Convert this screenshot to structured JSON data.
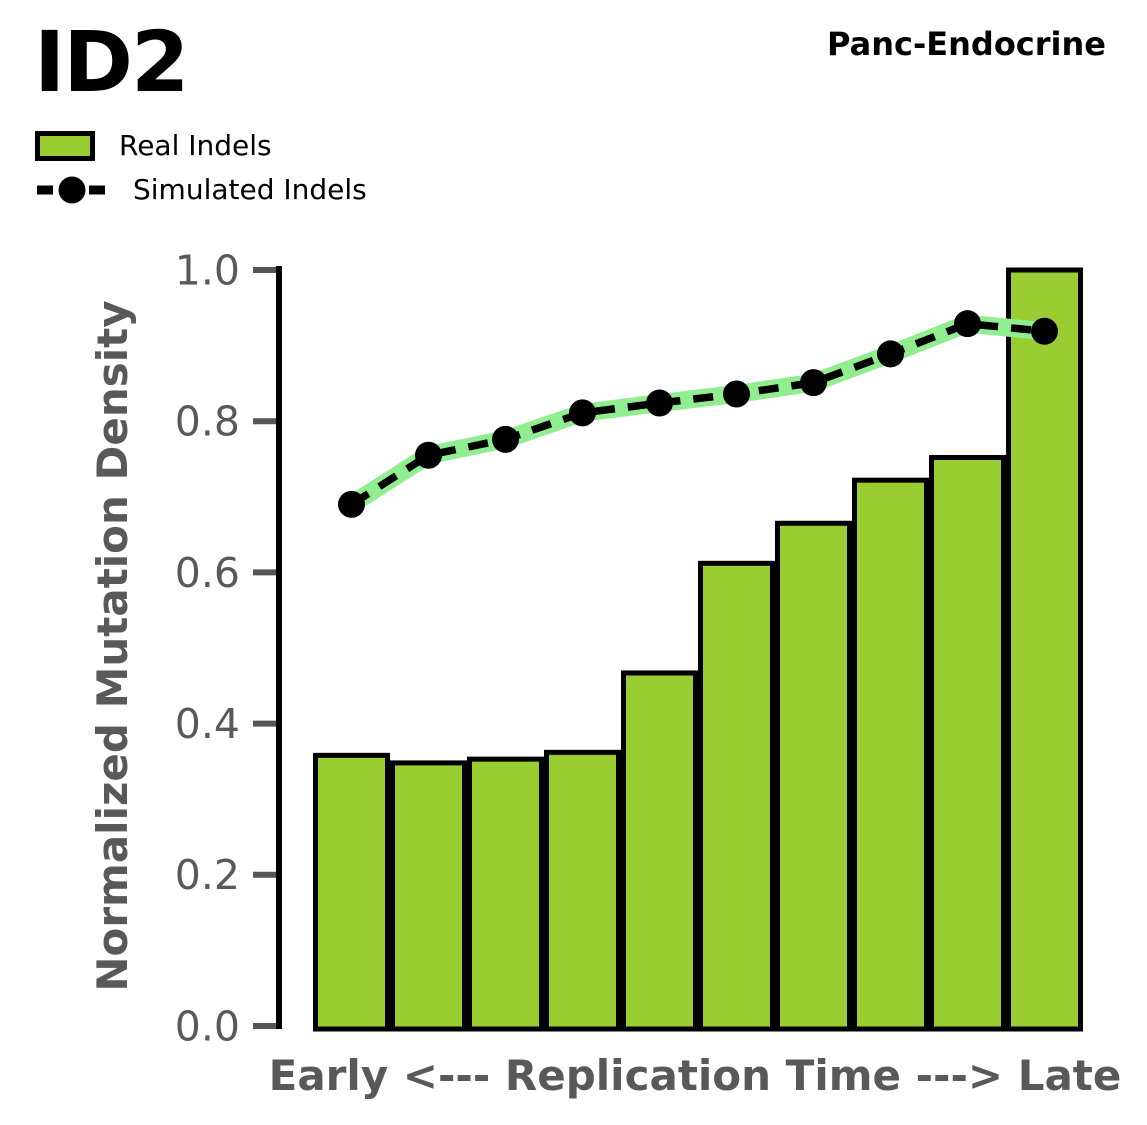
{
  "header": {
    "title": "ID2",
    "cohort": "Panc-Endocrine"
  },
  "legend": {
    "items": [
      {
        "label": "Real Indels",
        "swatch": "bar"
      },
      {
        "label": "Simulated Indels",
        "swatch": "dashed-line-with-dot"
      }
    ]
  },
  "colors": {
    "bar_fill": "#9ACD32",
    "bar_edge": "#000000",
    "line": "#000000",
    "line_glow": "#90EE90",
    "axis_text": "#595959",
    "tick": "#555555",
    "spine": "#000000",
    "title_text": "#000000",
    "background": "#ffffff"
  },
  "chart_data": {
    "type": "bar",
    "title": "ID2",
    "annotation": "Panc-Endocrine",
    "xlabel": "Early <--- Replication Time ---> Late",
    "ylabel": "Normalized Mutation Density",
    "ylim": [
      0.0,
      1.0
    ],
    "yticks": [
      0.0,
      0.2,
      0.4,
      0.6,
      0.8,
      1.0
    ],
    "x_bins": 10,
    "grid": false,
    "legend_position": "upper-left outside plot",
    "series": [
      {
        "name": "Real Indels",
        "type": "bar",
        "values": [
          0.358,
          0.348,
          0.353,
          0.362,
          0.467,
          0.612,
          0.665,
          0.722,
          0.752,
          1.0
        ]
      },
      {
        "name": "Simulated Indels",
        "type": "line",
        "style": "black dashed line, filled circle markers, light-green glow underlay",
        "values": [
          0.69,
          0.755,
          0.776,
          0.811,
          0.824,
          0.836,
          0.851,
          0.889,
          0.929,
          0.919
        ]
      }
    ]
  }
}
